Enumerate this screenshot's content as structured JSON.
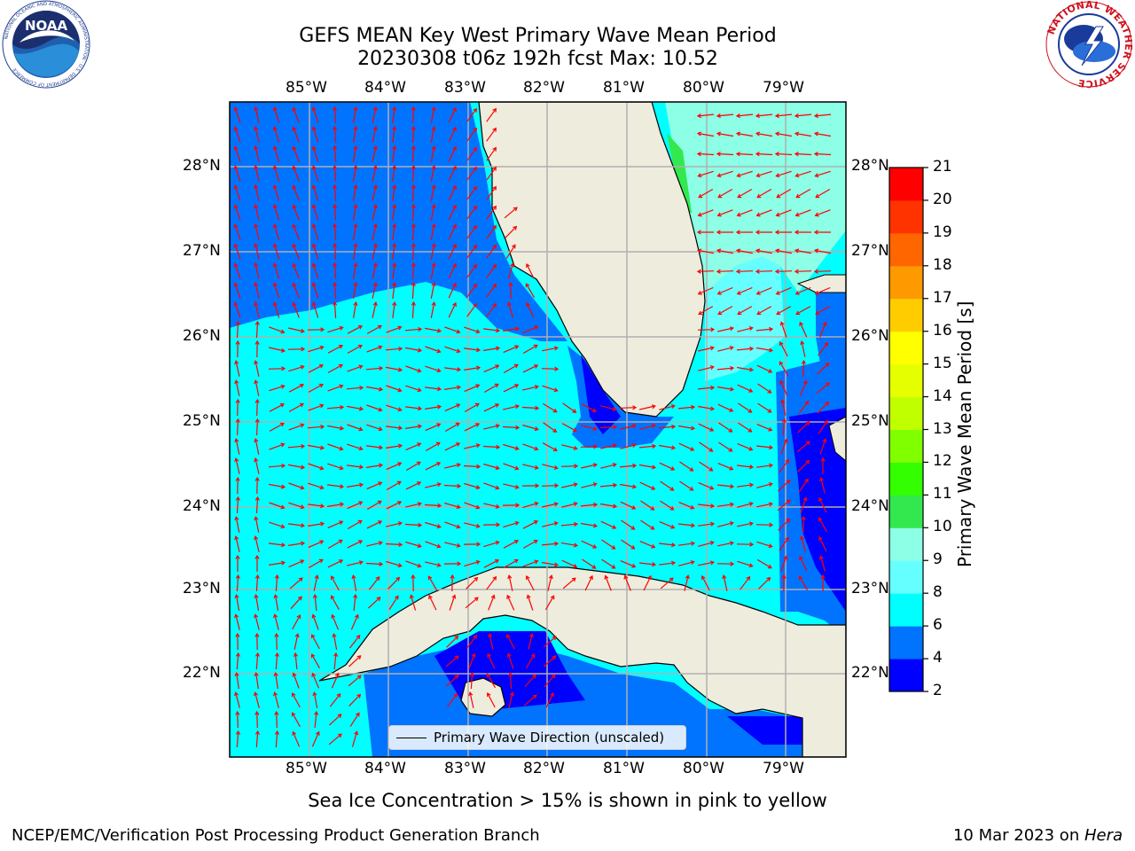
{
  "header": {
    "title_line1": "GEFS MEAN Key West Primary Wave Mean Period",
    "title_line2": "20230308 t06z 192h fcst   Max: 10.52"
  },
  "logos": {
    "left": "NOAA",
    "left_ring": "NATIONAL OCEANIC AND ATMOSPHERIC ADMINISTRATION · U.S. DEPARTMENT OF COMMERCE",
    "right_ring": "NATIONAL WEATHER SERVICE"
  },
  "map": {
    "lon_ticks": [
      "85°W",
      "84°W",
      "83°W",
      "82°W",
      "81°W",
      "80°W",
      "79°W"
    ],
    "lat_ticks": [
      "28°N",
      "27°N",
      "26°N",
      "25°N",
      "24°N",
      "23°N",
      "22°N"
    ],
    "legend_label": "Primary Wave Direction (unscaled)",
    "colors": {
      "land": "#eeecdd",
      "band_2_4": "#0000ff",
      "band_4_6": "#0073ff",
      "band_6_8": "#00ffff",
      "band_8_9": "#66ffff",
      "band_9_10": "#8cffe6",
      "band_10_11": "#33e84f",
      "arrow": "#ff0000",
      "grid": "#b0b0b0"
    }
  },
  "colorbar": {
    "label": "Primary Wave Mean Period [s]",
    "ticks": [
      "2",
      "4",
      "6",
      "8",
      "9",
      "10",
      "11",
      "12",
      "13",
      "14",
      "15",
      "16",
      "17",
      "18",
      "19",
      "20",
      "21"
    ],
    "colors": [
      "#0000ff",
      "#0073ff",
      "#00ffff",
      "#66ffff",
      "#8cffe6",
      "#33e84f",
      "#33ff00",
      "#80ff00",
      "#bfff00",
      "#e6ff00",
      "#ffff00",
      "#ffcc00",
      "#ff9900",
      "#ff6600",
      "#ff3300",
      "#ff0000"
    ]
  },
  "footer": {
    "note": "Sea Ice Concentration > 15% is shown in pink to yellow",
    "org": "NCEP/EMC/Verification Post Processing Product Generation Branch",
    "date": "10 Mar 2023 on ",
    "machine": "Hera"
  }
}
